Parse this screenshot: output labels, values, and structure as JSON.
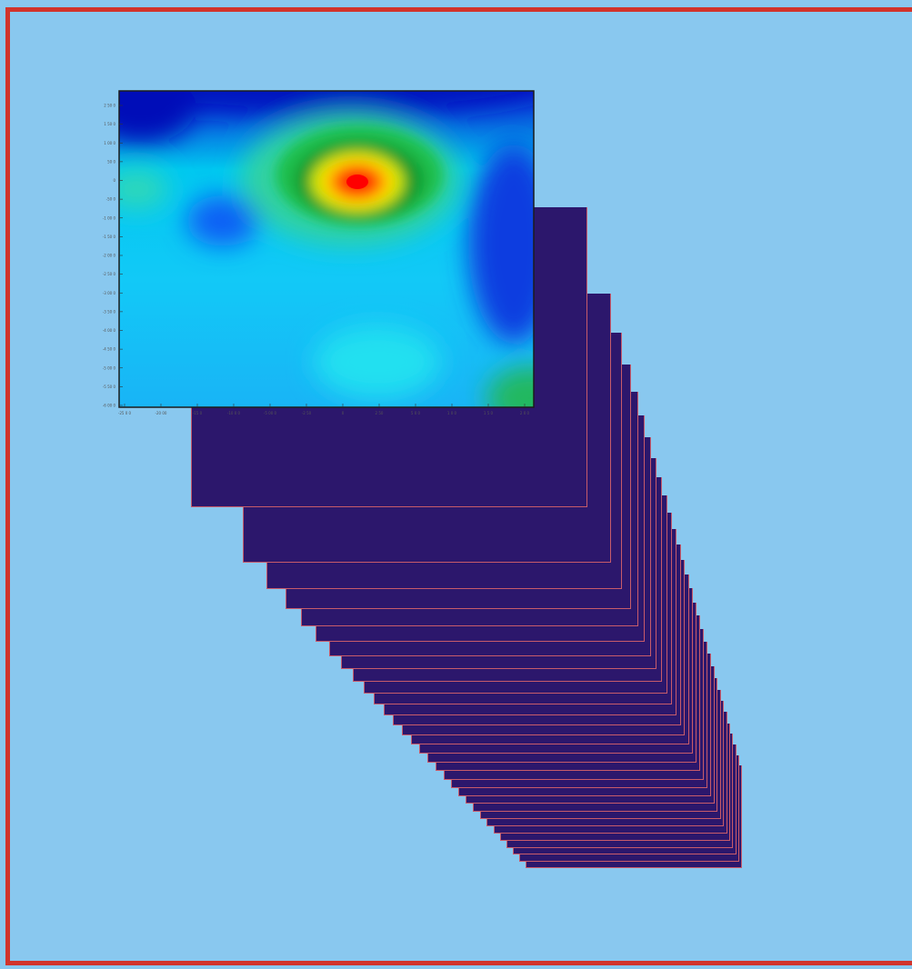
{
  "diagram": {
    "type": "stacked-slices",
    "colors": {
      "background": "#89c8ef",
      "frame_border": "#d1342c",
      "sheet_fill": "#2c176c",
      "sheet_edge": "#c75b6a",
      "heatmap_scale": [
        "#0010b8",
        "#0060ff",
        "#00e6ff",
        "#2bd9ae",
        "#1fbf4f",
        "#1a9a2d",
        "#ffe600",
        "#ff6a00",
        "#ff0000"
      ]
    },
    "sheet_count": 31,
    "heatmap": {
      "y_tick_labels": [
        "2 50 0",
        "1 50 0",
        "1 00 0",
        "50 0",
        "0",
        "-50 0",
        "-1 00 0",
        "-1 50 0",
        "-2 00 0",
        "-2 50 0",
        "-3 00 0",
        "-3 50 0",
        "-4 00 0",
        "-4 50 0",
        "-5 00 0",
        "-5 50 0",
        "-6 00 0"
      ],
      "x_tick_labels": [
        "-25 0 0",
        "-20 00",
        "-15 0",
        "-10 0 0",
        "-5 00 0",
        "-2 50",
        "0",
        "2 50",
        "5 0 0",
        "1 0 0",
        "1 5 0",
        "2 0 0"
      ]
    }
  }
}
